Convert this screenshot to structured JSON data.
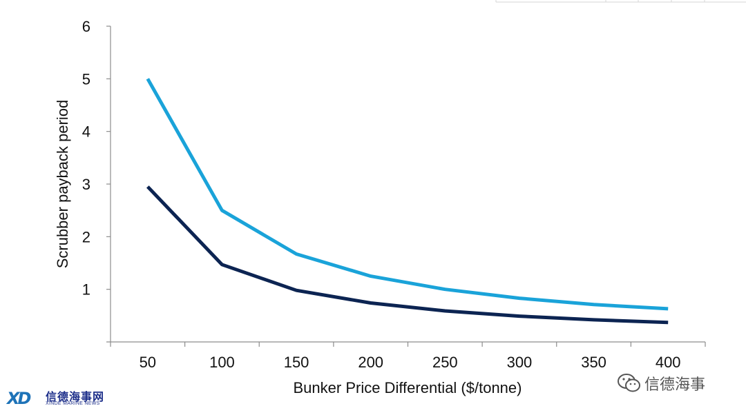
{
  "chart_data": {
    "type": "line",
    "xlabel": "Bunker Price Differential ($/tonne)",
    "ylabel": "Scrubber payback period",
    "categories": [
      "50",
      "100",
      "150",
      "200",
      "250",
      "300",
      "350",
      "400"
    ],
    "yticks": [
      "1",
      "2",
      "3",
      "4",
      "5",
      "6"
    ],
    "ylim": [
      0,
      6
    ],
    "grid": false,
    "legend": "none",
    "series": [
      {
        "color": "#1aa3d9",
        "values": [
          5.0,
          2.5,
          1.67,
          1.25,
          1.0,
          0.83,
          0.71,
          0.63
        ]
      },
      {
        "color": "#0c2452",
        "values": [
          2.95,
          1.47,
          0.98,
          0.74,
          0.59,
          0.49,
          0.42,
          0.37
        ]
      }
    ]
  },
  "branding": {
    "logo_mark": "XD",
    "logo_cn": "信德海事网",
    "logo_en": "XINDE MARINE NEWS",
    "watermark_text": "信德海事",
    "watermark_icon": "wechat-icon",
    "logo_color": "#1d2f8a"
  }
}
